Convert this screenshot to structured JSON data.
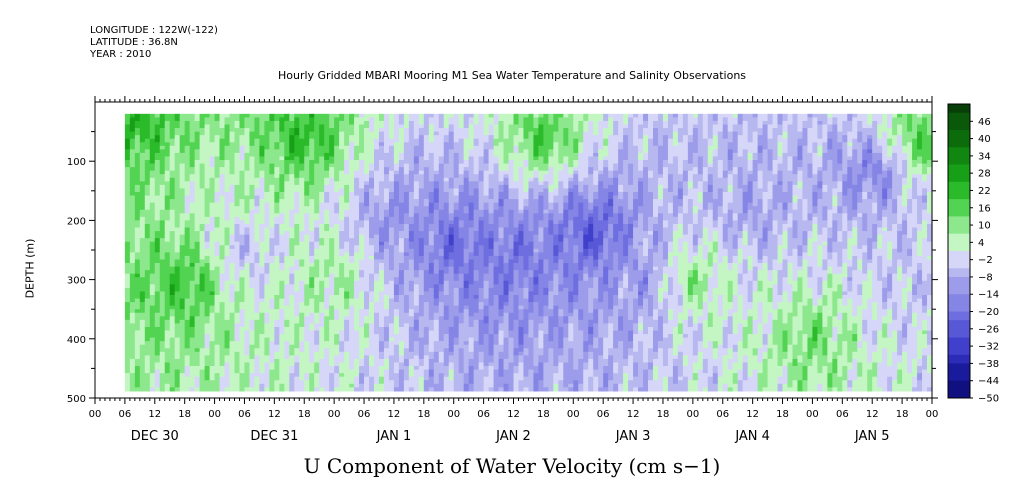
{
  "header": {
    "longitude": "LONGITUDE : 122W(-122)",
    "latitude": "LATITUDE : 36.8N",
    "year": "YEAR : 2010"
  },
  "chart_data": {
    "type": "heatmap",
    "title": "Hourly Gridded MBARI Mooring M1 Sea Water Temperature and Salinity Observations",
    "bottom_title": "U Component of Water Velocity (cm s−1)",
    "ylabel": "DEPTH (m)",
    "ylim": [
      500,
      0
    ],
    "y_ticks": [
      "100",
      "200",
      "300",
      "400",
      "500"
    ],
    "x_hour_ticks": [
      "00",
      "06",
      "12",
      "18",
      "00",
      "06",
      "12",
      "18",
      "00",
      "06",
      "12",
      "18",
      "00",
      "06",
      "12",
      "18",
      "00",
      "06",
      "12",
      "18",
      "00",
      "06",
      "12",
      "18",
      "00",
      "06",
      "12",
      "18",
      "00"
    ],
    "x_day_labels": [
      "DEC 30",
      "DEC 31",
      "JAN  1",
      "JAN  2",
      "JAN  3",
      "JAN  4",
      "JAN  5"
    ],
    "data_extent": {
      "x_start_hours_after_dec30_00": 6,
      "depth_top_m": 20,
      "depth_bottom_m": 485
    },
    "colorbar": {
      "labels": [
        "46",
        "40",
        "34",
        "28",
        "22",
        "16",
        "10",
        "4",
        "−2",
        "−8",
        "−14",
        "−20",
        "−26",
        "−32",
        "−38",
        "−44",
        "−50"
      ],
      "min": -50,
      "max": 52,
      "step": 3,
      "positive_colors": [
        "#c4f6c4",
        "#8de88d",
        "#52d452",
        "#2aba2a",
        "#17a017",
        "#118611",
        "#0c6c0c",
        "#0a580a",
        "#083f08"
      ],
      "negative_colors": [
        "#d6d6f8",
        "#b8b8f0",
        "#9c9ceb",
        "#8585e6",
        "#6e6ee0",
        "#5858d6",
        "#4040cc",
        "#2c2cb8",
        "#1a1a9c",
        "#101080",
        "#050560"
      ]
    },
    "field_pattern": [
      {
        "x_hour": 6,
        "depth": 20,
        "value": 24
      },
      {
        "x_hour": 18,
        "depth": 300,
        "value": 20
      },
      {
        "x_hour": 24,
        "depth": 180,
        "value": 4
      },
      {
        "x_hour": 30,
        "depth": 250,
        "value": -6
      },
      {
        "x_hour": 42,
        "depth": 60,
        "value": 22
      },
      {
        "x_hour": 48,
        "depth": 300,
        "value": 8
      },
      {
        "x_hour": 60,
        "depth": 200,
        "value": -14
      },
      {
        "x_hour": 72,
        "depth": 240,
        "value": -22
      },
      {
        "x_hour": 84,
        "depth": 260,
        "value": -20
      },
      {
        "x_hour": 90,
        "depth": 60,
        "value": 18
      },
      {
        "x_hour": 100,
        "depth": 220,
        "value": -26
      },
      {
        "x_hour": 110,
        "depth": 300,
        "value": -12
      },
      {
        "x_hour": 120,
        "depth": 300,
        "value": 10
      },
      {
        "x_hour": 132,
        "depth": 180,
        "value": -10
      },
      {
        "x_hour": 144,
        "depth": 400,
        "value": 12
      },
      {
        "x_hour": 156,
        "depth": 120,
        "value": -16
      },
      {
        "x_hour": 162,
        "depth": 300,
        "value": -4
      },
      {
        "x_hour": 166,
        "depth": 60,
        "value": 16
      }
    ]
  }
}
